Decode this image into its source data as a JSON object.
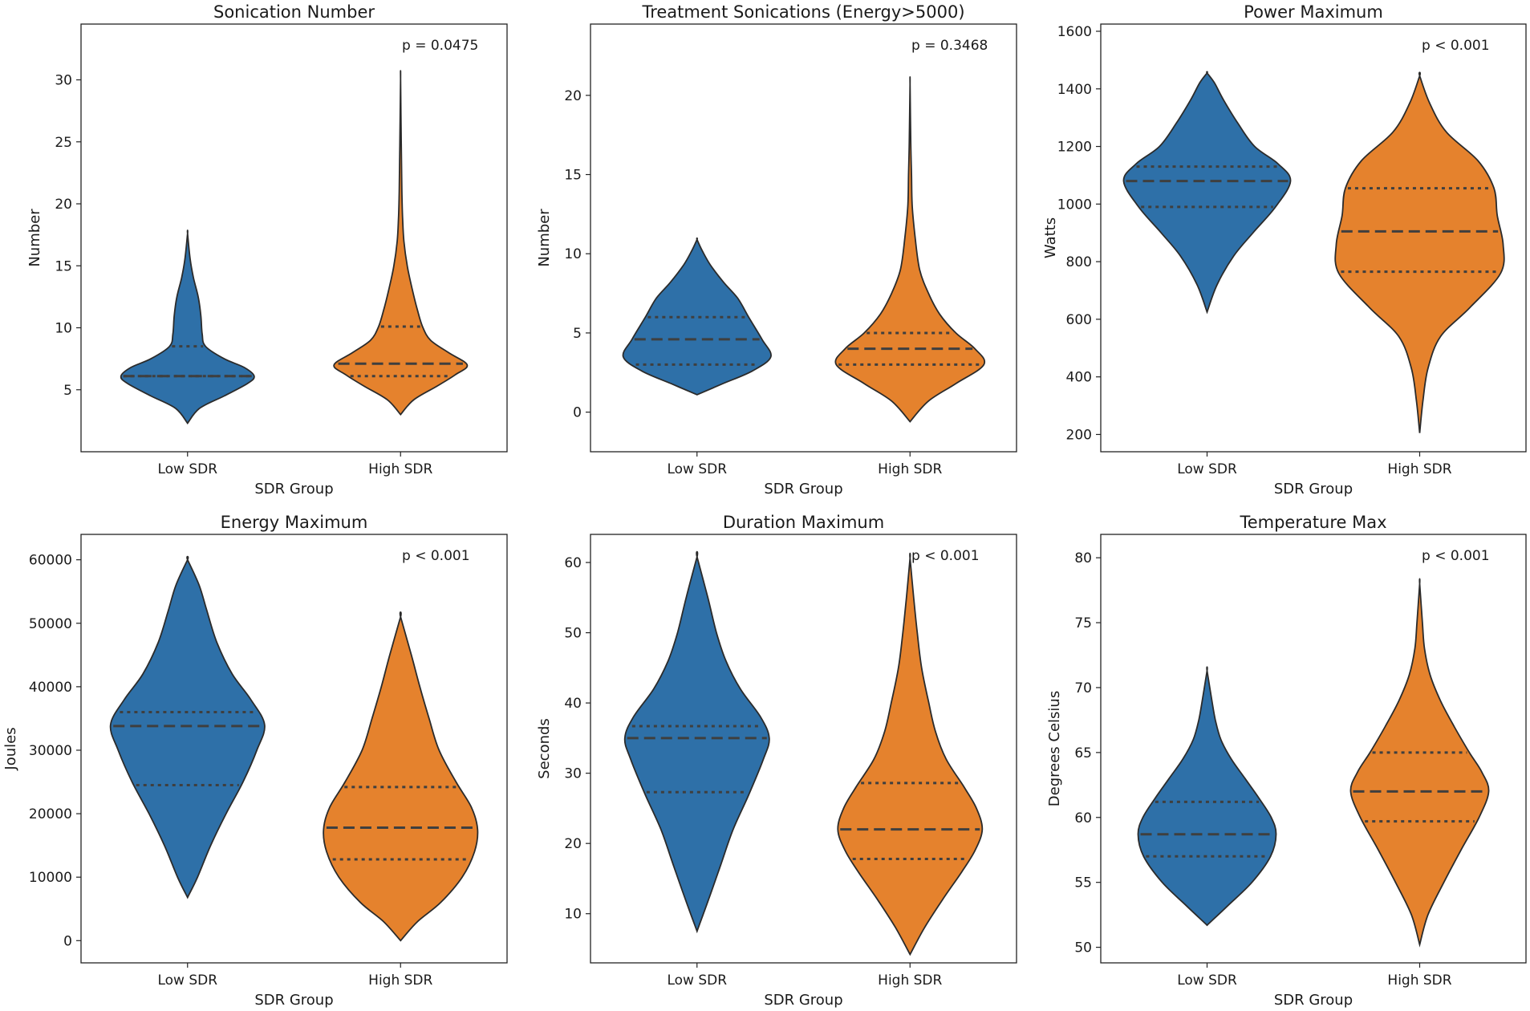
{
  "chart_data": [
    {
      "type": "violin",
      "title": "Sonication Number",
      "xlabel": "SDR Group",
      "ylabel": "Number",
      "ylim": [
        0,
        34.5
      ],
      "yticks": [
        5,
        10,
        15,
        20,
        25,
        30
      ],
      "categories": [
        "Low SDR",
        "High SDR"
      ],
      "annotation": "p = 0.0475",
      "series": [
        {
          "name": "Low SDR",
          "color": "#2e70a8",
          "min": 2.3,
          "max": 17.6,
          "median": 6.1,
          "q1": 6.1,
          "q3": 8.5,
          "profile": [
            [
              2.3,
              0
            ],
            [
              3.5,
              0.18
            ],
            [
              4.5,
              0.55
            ],
            [
              5.5,
              0.9
            ],
            [
              6.1,
              1.0
            ],
            [
              6.8,
              0.85
            ],
            [
              7.5,
              0.55
            ],
            [
              8.5,
              0.27
            ],
            [
              9.5,
              0.22
            ],
            [
              11,
              0.2
            ],
            [
              12.5,
              0.16
            ],
            [
              14,
              0.09
            ],
            [
              15.5,
              0.04
            ],
            [
              17.6,
              0
            ]
          ]
        },
        {
          "name": "High SDR",
          "color": "#e5822d",
          "min": 3.0,
          "max": 30.1,
          "median": 7.1,
          "q1": 6.1,
          "q3": 10.1,
          "profile": [
            [
              3.0,
              0
            ],
            [
              4.2,
              0.2
            ],
            [
              5.3,
              0.55
            ],
            [
              6.2,
              0.82
            ],
            [
              7.0,
              1.0
            ],
            [
              8.0,
              0.72
            ],
            [
              9.0,
              0.45
            ],
            [
              10.1,
              0.33
            ],
            [
              11.5,
              0.25
            ],
            [
              13,
              0.18
            ],
            [
              15,
              0.1
            ],
            [
              17,
              0.05
            ],
            [
              19,
              0.03
            ],
            [
              21,
              0.02
            ],
            [
              25,
              0.01
            ],
            [
              30.1,
              0
            ]
          ]
        }
      ]
    },
    {
      "type": "violin",
      "title": "Treatment Sonications (Energy>5000)",
      "xlabel": "SDR Group",
      "ylabel": "Number",
      "ylim": [
        -2.5,
        24.5
      ],
      "yticks": [
        0,
        5,
        10,
        15,
        20
      ],
      "categories": [
        "Low SDR",
        "High SDR"
      ],
      "annotation": "p = 0.3468",
      "series": [
        {
          "name": "Low SDR",
          "color": "#2e70a8",
          "min": 1.1,
          "max": 10.9,
          "median": 4.6,
          "q1": 3.0,
          "q3": 6.0,
          "profile": [
            [
              1.1,
              0
            ],
            [
              1.8,
              0.35
            ],
            [
              2.6,
              0.75
            ],
            [
              3.5,
              1.0
            ],
            [
              4.6,
              0.88
            ],
            [
              6.0,
              0.7
            ],
            [
              7.2,
              0.55
            ],
            [
              8.2,
              0.36
            ],
            [
              9.3,
              0.18
            ],
            [
              10.2,
              0.07
            ],
            [
              10.9,
              0
            ]
          ]
        },
        {
          "name": "High SDR",
          "color": "#e5822d",
          "min": -0.6,
          "max": 20.7,
          "median": 4.0,
          "q1": 3.0,
          "q3": 5.0,
          "profile": [
            [
              -0.6,
              0
            ],
            [
              0.7,
              0.25
            ],
            [
              1.8,
              0.62
            ],
            [
              3.0,
              1.0
            ],
            [
              4.0,
              0.88
            ],
            [
              5.0,
              0.62
            ],
            [
              6.2,
              0.4
            ],
            [
              7.5,
              0.25
            ],
            [
              9,
              0.13
            ],
            [
              11,
              0.07
            ],
            [
              13,
              0.03
            ],
            [
              15,
              0.02
            ],
            [
              17,
              0.01
            ],
            [
              20.7,
              0
            ]
          ]
        }
      ]
    },
    {
      "type": "violin",
      "title": "Power Maximum",
      "xlabel": "SDR Group",
      "ylabel": "Watts",
      "ylim": [
        140,
        1625
      ],
      "yticks": [
        200,
        400,
        600,
        800,
        1000,
        1200,
        1400,
        1600
      ],
      "categories": [
        "Low SDR",
        "High SDR"
      ],
      "annotation": "p < 0.001",
      "series": [
        {
          "name": "Low SDR",
          "color": "#2e70a8",
          "min": 625,
          "max": 1455,
          "median": 1080,
          "q1": 990,
          "q3": 1130,
          "profile": [
            [
              625,
              0
            ],
            [
              720,
              0.12
            ],
            [
              820,
              0.32
            ],
            [
              900,
              0.55
            ],
            [
              990,
              0.82
            ],
            [
              1080,
              1.0
            ],
            [
              1140,
              0.85
            ],
            [
              1200,
              0.57
            ],
            [
              1280,
              0.37
            ],
            [
              1360,
              0.2
            ],
            [
              1420,
              0.09
            ],
            [
              1455,
              0
            ]
          ]
        },
        {
          "name": "High SDR",
          "color": "#e5822d",
          "min": 205,
          "max": 1445,
          "median": 905,
          "q1": 765,
          "q3": 1055,
          "profile": [
            [
              205,
              0
            ],
            [
              320,
              0.04
            ],
            [
              430,
              0.1
            ],
            [
              540,
              0.25
            ],
            [
              640,
              0.6
            ],
            [
              760,
              0.97
            ],
            [
              860,
              1.0
            ],
            [
              960,
              0.93
            ],
            [
              1055,
              0.89
            ],
            [
              1150,
              0.7
            ],
            [
              1250,
              0.32
            ],
            [
              1350,
              0.12
            ],
            [
              1445,
              0
            ]
          ]
        }
      ]
    },
    {
      "type": "violin",
      "title": "Energy Maximum",
      "xlabel": "SDR Group",
      "ylabel": "Joules",
      "ylim": [
        -3500,
        64000
      ],
      "yticks": [
        0,
        10000,
        20000,
        30000,
        40000,
        50000,
        60000
      ],
      "categories": [
        "Low SDR",
        "High SDR"
      ],
      "annotation": "p < 0.001",
      "series": [
        {
          "name": "Low SDR",
          "color": "#2e70a8",
          "min": 6800,
          "max": 60000,
          "median": 33800,
          "q1": 24500,
          "q3": 36000,
          "profile": [
            [
              6800,
              0
            ],
            [
              10000,
              0.13
            ],
            [
              15000,
              0.3
            ],
            [
              20000,
              0.5
            ],
            [
              25000,
              0.72
            ],
            [
              30000,
              0.9
            ],
            [
              34000,
              1.0
            ],
            [
              38000,
              0.82
            ],
            [
              42000,
              0.58
            ],
            [
              47000,
              0.38
            ],
            [
              52000,
              0.25
            ],
            [
              56000,
              0.15
            ],
            [
              60000,
              0
            ]
          ]
        },
        {
          "name": "High SDR",
          "color": "#e5822d",
          "min": 0,
          "max": 51000,
          "median": 17800,
          "q1": 12800,
          "q3": 24200,
          "profile": [
            [
              0,
              0
            ],
            [
              3000,
              0.22
            ],
            [
              6000,
              0.52
            ],
            [
              10000,
              0.8
            ],
            [
              14000,
              0.96
            ],
            [
              17500,
              1.0
            ],
            [
              21000,
              0.92
            ],
            [
              25000,
              0.72
            ],
            [
              30000,
              0.5
            ],
            [
              35000,
              0.37
            ],
            [
              40000,
              0.25
            ],
            [
              45000,
              0.14
            ],
            [
              51000,
              0
            ]
          ]
        }
      ]
    },
    {
      "type": "violin",
      "title": "Duration Maximum",
      "xlabel": "SDR Group",
      "ylabel": "Seconds",
      "ylim": [
        3,
        64
      ],
      "yticks": [
        10,
        20,
        30,
        40,
        50,
        60
      ],
      "categories": [
        "Low SDR",
        "High SDR"
      ],
      "annotation": "p < 0.001",
      "series": [
        {
          "name": "Low SDR",
          "color": "#2e70a8",
          "min": 7.5,
          "max": 60.8,
          "median": 35.0,
          "q1": 27.3,
          "q3": 36.7,
          "profile": [
            [
              7.5,
              0
            ],
            [
              12,
              0.16
            ],
            [
              17,
              0.33
            ],
            [
              22,
              0.5
            ],
            [
              27,
              0.72
            ],
            [
              32,
              0.92
            ],
            [
              35,
              1.0
            ],
            [
              38,
              0.88
            ],
            [
              42,
              0.6
            ],
            [
              46,
              0.4
            ],
            [
              50,
              0.27
            ],
            [
              55,
              0.15
            ],
            [
              60.8,
              0
            ]
          ]
        },
        {
          "name": "High SDR",
          "color": "#e5822d",
          "min": 4.2,
          "max": 60.6,
          "median": 22.0,
          "q1": 17.8,
          "q3": 28.6,
          "profile": [
            [
              4.2,
              0
            ],
            [
              8,
              0.2
            ],
            [
              12,
              0.45
            ],
            [
              16,
              0.72
            ],
            [
              19,
              0.9
            ],
            [
              22,
              1.0
            ],
            [
              25,
              0.92
            ],
            [
              28,
              0.75
            ],
            [
              32,
              0.5
            ],
            [
              36,
              0.35
            ],
            [
              40,
              0.26
            ],
            [
              45,
              0.16
            ],
            [
              50,
              0.1
            ],
            [
              55,
              0.05
            ],
            [
              60.6,
              0
            ]
          ]
        }
      ]
    },
    {
      "type": "violin",
      "title": "Temperature Max",
      "xlabel": "SDR Group",
      "ylabel": "Degrees Celsius",
      "ylim": [
        48.8,
        81.8
      ],
      "yticks": [
        50,
        55,
        60,
        65,
        70,
        75,
        80
      ],
      "categories": [
        "Low SDR",
        "High SDR"
      ],
      "annotation": "p < 0.001",
      "series": [
        {
          "name": "Low SDR",
          "color": "#2e70a8",
          "min": 51.7,
          "max": 71.3,
          "median": 58.7,
          "q1": 57.0,
          "q3": 61.2,
          "profile": [
            [
              51.7,
              0
            ],
            [
              53.2,
              0.3
            ],
            [
              55,
              0.65
            ],
            [
              57,
              0.92
            ],
            [
              58.7,
              1.0
            ],
            [
              60,
              0.93
            ],
            [
              61.5,
              0.75
            ],
            [
              63,
              0.55
            ],
            [
              64.5,
              0.35
            ],
            [
              66,
              0.2
            ],
            [
              67.5,
              0.12
            ],
            [
              69,
              0.07
            ],
            [
              71.3,
              0
            ]
          ]
        },
        {
          "name": "High SDR",
          "color": "#e5822d",
          "min": 50.2,
          "max": 78.0,
          "median": 62.0,
          "q1": 59.7,
          "q3": 65.0,
          "profile": [
            [
              50.2,
              0
            ],
            [
              52.5,
              0.12
            ],
            [
              55,
              0.35
            ],
            [
              57.5,
              0.6
            ],
            [
              60,
              0.86
            ],
            [
              62,
              1.0
            ],
            [
              63.5,
              0.9
            ],
            [
              65,
              0.72
            ],
            [
              67,
              0.5
            ],
            [
              69,
              0.3
            ],
            [
              71,
              0.15
            ],
            [
              73,
              0.07
            ],
            [
              75,
              0.04
            ],
            [
              78,
              0
            ]
          ]
        }
      ]
    }
  ]
}
